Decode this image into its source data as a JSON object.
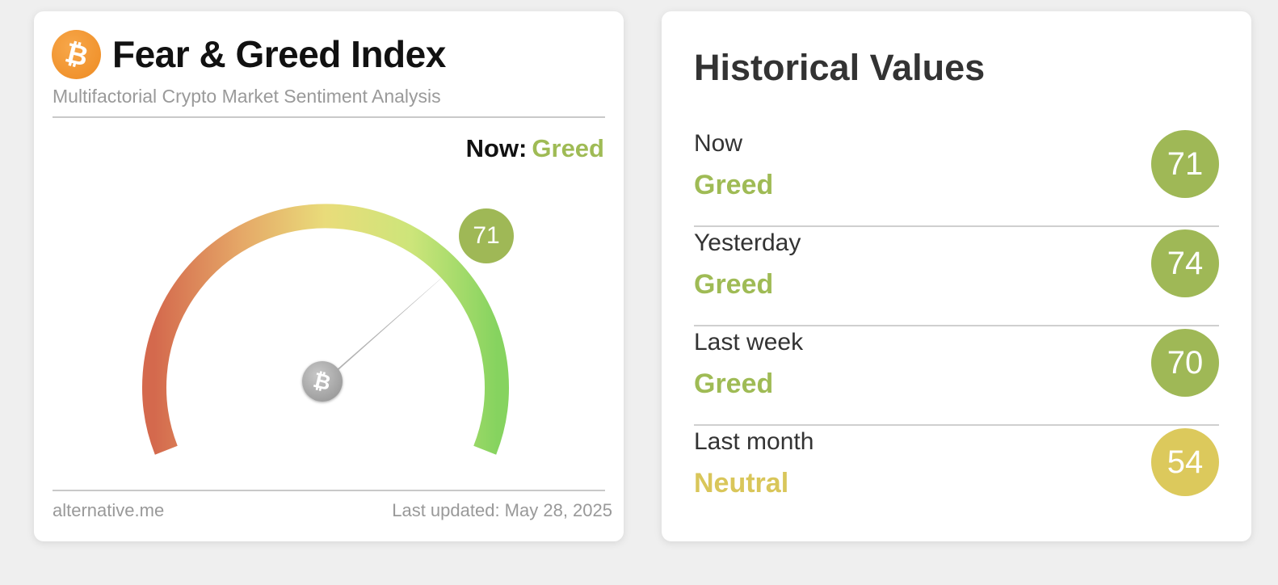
{
  "index_card": {
    "title": "Fear & Greed Index",
    "subtitle": "Multifactorial Crypto Market Sentiment Analysis",
    "now_label": "Now:",
    "now_classification": "Greed",
    "gauge_value": "71",
    "gauge_level": 71,
    "logo_icon": "bitcoin-icon",
    "footer_source": "alternative.me",
    "footer_updated": "Last updated: May 28, 2025"
  },
  "historical": {
    "title": "Historical Values",
    "rows": [
      {
        "period": "Now",
        "classification": "Greed",
        "value": "71",
        "color": "#9fb856"
      },
      {
        "period": "Yesterday",
        "classification": "Greed",
        "value": "74",
        "color": "#9fb856"
      },
      {
        "period": "Last week",
        "classification": "Greed",
        "value": "70",
        "color": "#9fb856"
      },
      {
        "period": "Last month",
        "classification": "Neutral",
        "value": "54",
        "color": "#dcc95c"
      }
    ]
  },
  "colors": {
    "greed": "#9fbb55",
    "neutral": "#d9c65a",
    "accent_bitcoin": "#ee8b22"
  }
}
